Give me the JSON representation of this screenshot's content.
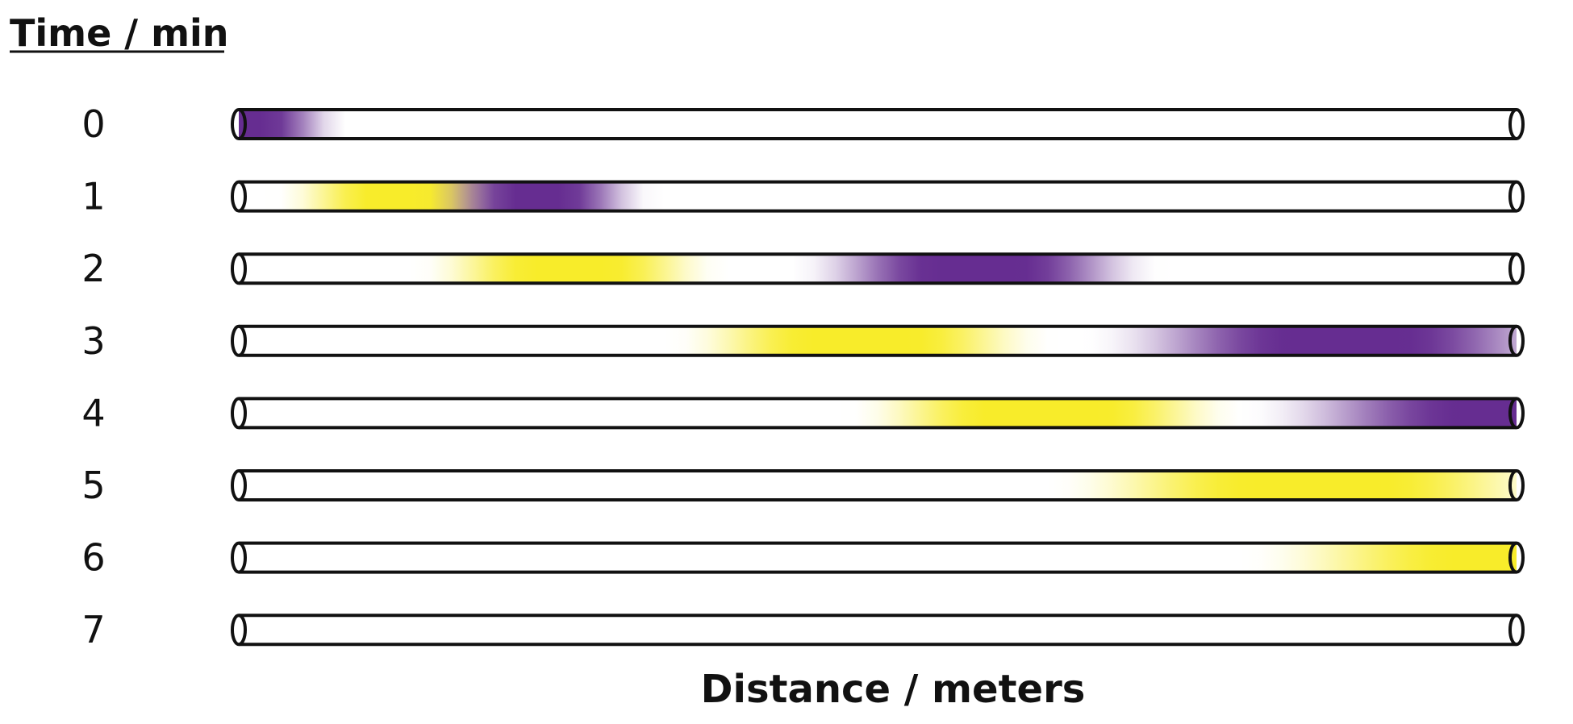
{
  "title": "Time / min",
  "xlabel": "Distance / meters",
  "colors": {
    "band_a": "#662d91",
    "band_b": "#f8ec2a",
    "outline": "#111111",
    "tube": "#ffffff"
  },
  "rows": [
    {
      "time": "0",
      "bands": [
        {
          "color": "band_a",
          "center": 0.012,
          "halfwidth": 0.06,
          "hold": 0.012
        }
      ]
    },
    {
      "time": "1",
      "bands": [
        {
          "color": "band_b",
          "center": 0.124,
          "halfwidth": 0.075,
          "hold": 0.02
        },
        {
          "color": "band_a",
          "center": 0.235,
          "halfwidth": 0.07,
          "hold": 0.02
        }
      ]
    },
    {
      "time": "2",
      "bands": [
        {
          "color": "band_b",
          "center": 0.26,
          "halfwidth": 0.09,
          "hold": 0.03
        },
        {
          "color": "band_a",
          "center": 0.578,
          "halfwidth": 0.11,
          "hold": 0.035
        }
      ]
    },
    {
      "time": "3",
      "bands": [
        {
          "color": "band_b",
          "center": 0.488,
          "halfwidth": 0.11,
          "hold": 0.04
        },
        {
          "color": "band_a",
          "center": 0.866,
          "halfwidth": 0.16,
          "hold": 0.045
        }
      ]
    },
    {
      "time": "4",
      "bands": [
        {
          "color": "band_b",
          "center": 0.632,
          "halfwidth": 0.11,
          "hold": 0.045
        },
        {
          "color": "band_a",
          "center": 0.985,
          "halfwidth": 0.17,
          "hold": 0.03
        }
      ]
    },
    {
      "time": "5",
      "bands": [
        {
          "color": "band_b",
          "center": 0.843,
          "halfwidth": 0.16,
          "hold": 0.05
        }
      ]
    },
    {
      "time": "6",
      "bands": [
        {
          "color": "band_b",
          "center": 0.985,
          "halfwidth": 0.17,
          "hold": 0.03
        }
      ]
    },
    {
      "time": "7",
      "bands": []
    }
  ]
}
